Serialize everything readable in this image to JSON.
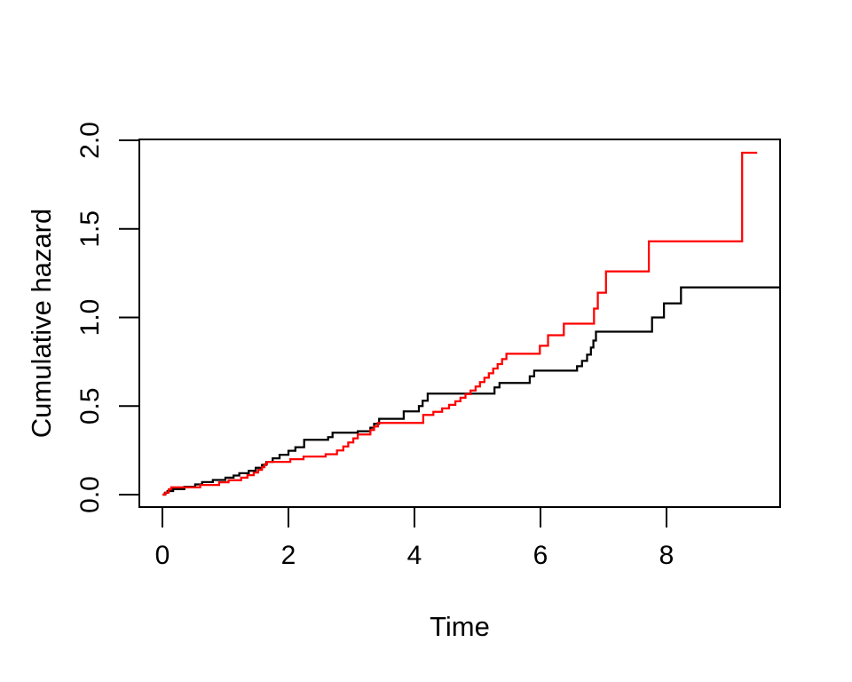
{
  "chart_data": {
    "type": "line",
    "subtype": "step",
    "title": "",
    "xlabel": "Time",
    "ylabel": "Cumulative hazard",
    "x_ticks": [
      "0",
      "2",
      "4",
      "6",
      "8"
    ],
    "x_tick_values": [
      0,
      2,
      4,
      6,
      8
    ],
    "y_ticks": [
      "0.0",
      "0.5",
      "1.0",
      "1.5",
      "2.0"
    ],
    "y_tick_values": [
      0.0,
      0.5,
      1.0,
      1.5,
      2.0
    ],
    "xlim": [
      -0.366,
      9.803
    ],
    "ylim": [
      -0.07,
      2.005
    ],
    "grid": false,
    "legend": "none",
    "box": true,
    "axis_color": "#000000",
    "background_color": "#ffffff",
    "series": [
      {
        "name": "group-1-black",
        "color": "#000000",
        "end_t": 9.803,
        "points": [
          [
            0.0,
            0.0
          ],
          [
            0.04,
            0.01
          ],
          [
            0.08,
            0.02
          ],
          [
            0.17,
            0.031
          ],
          [
            0.35,
            0.045
          ],
          [
            0.52,
            0.058
          ],
          [
            0.63,
            0.071
          ],
          [
            0.8,
            0.083
          ],
          [
            1.0,
            0.096
          ],
          [
            1.13,
            0.108
          ],
          [
            1.22,
            0.121
          ],
          [
            1.37,
            0.135
          ],
          [
            1.48,
            0.152
          ],
          [
            1.58,
            0.168
          ],
          [
            1.65,
            0.185
          ],
          [
            1.75,
            0.205
          ],
          [
            1.86,
            0.225
          ],
          [
            2.0,
            0.248
          ],
          [
            2.11,
            0.268
          ],
          [
            2.25,
            0.31
          ],
          [
            2.63,
            0.325
          ],
          [
            2.7,
            0.35
          ],
          [
            3.1,
            0.358
          ],
          [
            3.3,
            0.378
          ],
          [
            3.36,
            0.4
          ],
          [
            3.44,
            0.428
          ],
          [
            3.83,
            0.47
          ],
          [
            4.07,
            0.5
          ],
          [
            4.13,
            0.53
          ],
          [
            4.21,
            0.57
          ],
          [
            5.27,
            0.605
          ],
          [
            5.35,
            0.63
          ],
          [
            5.83,
            0.668
          ],
          [
            5.9,
            0.7
          ],
          [
            6.58,
            0.725
          ],
          [
            6.66,
            0.755
          ],
          [
            6.74,
            0.79
          ],
          [
            6.8,
            0.83
          ],
          [
            6.84,
            0.87
          ],
          [
            6.88,
            0.92
          ],
          [
            7.77,
            1.0
          ],
          [
            7.96,
            1.08
          ],
          [
            8.23,
            1.17
          ]
        ]
      },
      {
        "name": "group-2-red",
        "color": "#ff0000",
        "end_t": 9.44,
        "points": [
          [
            0.0,
            0.0
          ],
          [
            0.05,
            0.012
          ],
          [
            0.1,
            0.03
          ],
          [
            0.14,
            0.042
          ],
          [
            0.6,
            0.055
          ],
          [
            0.9,
            0.07
          ],
          [
            1.05,
            0.082
          ],
          [
            1.25,
            0.096
          ],
          [
            1.35,
            0.11
          ],
          [
            1.45,
            0.125
          ],
          [
            1.52,
            0.14
          ],
          [
            1.58,
            0.155
          ],
          [
            1.62,
            0.172
          ],
          [
            1.66,
            0.185
          ],
          [
            2.03,
            0.2
          ],
          [
            2.24,
            0.215
          ],
          [
            2.59,
            0.228
          ],
          [
            2.77,
            0.25
          ],
          [
            2.87,
            0.272
          ],
          [
            2.95,
            0.295
          ],
          [
            3.03,
            0.318
          ],
          [
            3.1,
            0.34
          ],
          [
            3.3,
            0.365
          ],
          [
            3.36,
            0.385
          ],
          [
            3.42,
            0.405
          ],
          [
            4.14,
            0.45
          ],
          [
            4.3,
            0.468
          ],
          [
            4.44,
            0.487
          ],
          [
            4.55,
            0.507
          ],
          [
            4.65,
            0.527
          ],
          [
            4.73,
            0.547
          ],
          [
            4.81,
            0.567
          ],
          [
            4.89,
            0.588
          ],
          [
            4.97,
            0.61
          ],
          [
            5.04,
            0.635
          ],
          [
            5.11,
            0.66
          ],
          [
            5.18,
            0.685
          ],
          [
            5.25,
            0.712
          ],
          [
            5.32,
            0.737
          ],
          [
            5.39,
            0.765
          ],
          [
            5.46,
            0.795
          ],
          [
            5.99,
            0.84
          ],
          [
            6.12,
            0.9
          ],
          [
            6.37,
            0.965
          ],
          [
            6.85,
            1.05
          ],
          [
            6.91,
            1.14
          ],
          [
            7.04,
            1.26
          ],
          [
            7.72,
            1.43
          ],
          [
            9.2,
            1.93
          ]
        ]
      }
    ]
  }
}
